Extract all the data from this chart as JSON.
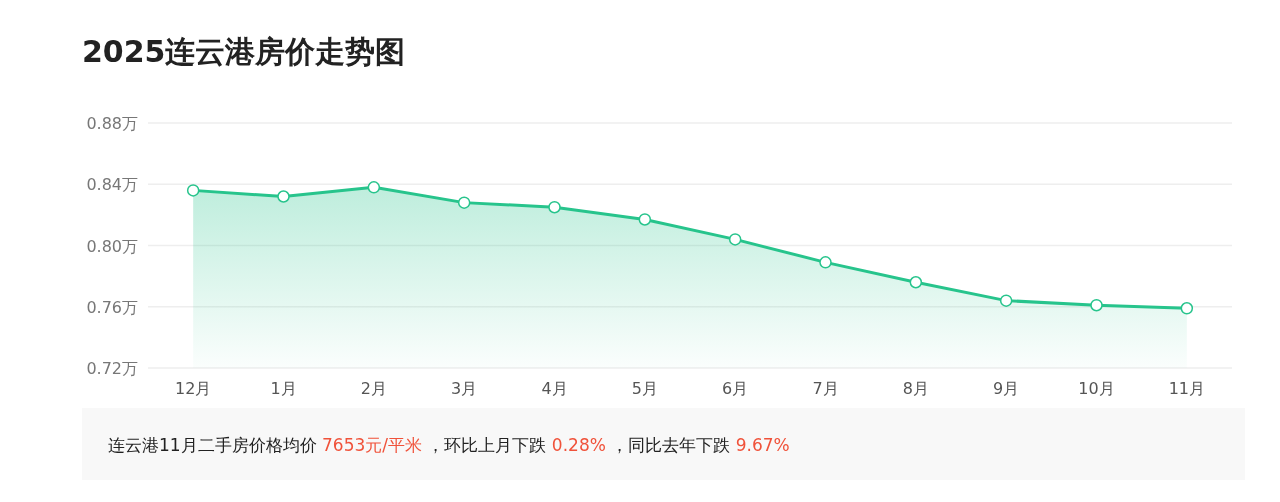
{
  "chart_data": {
    "type": "area",
    "title": "2025连云港房价走势图",
    "categories": [
      "12月",
      "1月",
      "2月",
      "3月",
      "4月",
      "5月",
      "6月",
      "7月",
      "8月",
      "9月",
      "10月",
      "11月"
    ],
    "series": [
      {
        "color": "#27c48c",
        "values": [
          0.836,
          0.832,
          0.838,
          0.828,
          0.825,
          0.817,
          0.804,
          0.789,
          0.776,
          0.764,
          0.761,
          0.759
        ]
      }
    ],
    "ylim": [
      0.72,
      0.88
    ],
    "yticks": [
      {
        "value": 0.72,
        "label": "0.72万"
      },
      {
        "value": 0.76,
        "label": "0.76万"
      },
      {
        "value": 0.8,
        "label": "0.80万"
      },
      {
        "value": 0.84,
        "label": "0.84万"
      },
      {
        "value": 0.88,
        "label": "0.88万"
      }
    ],
    "grid": "y",
    "marker": "circle",
    "annotations": [
      "连云港11月二手房价格均价",
      "7653元/平米",
      "，环比上月下跌",
      "0.28%",
      "，同比去年下跌",
      "9.67%"
    ]
  }
}
